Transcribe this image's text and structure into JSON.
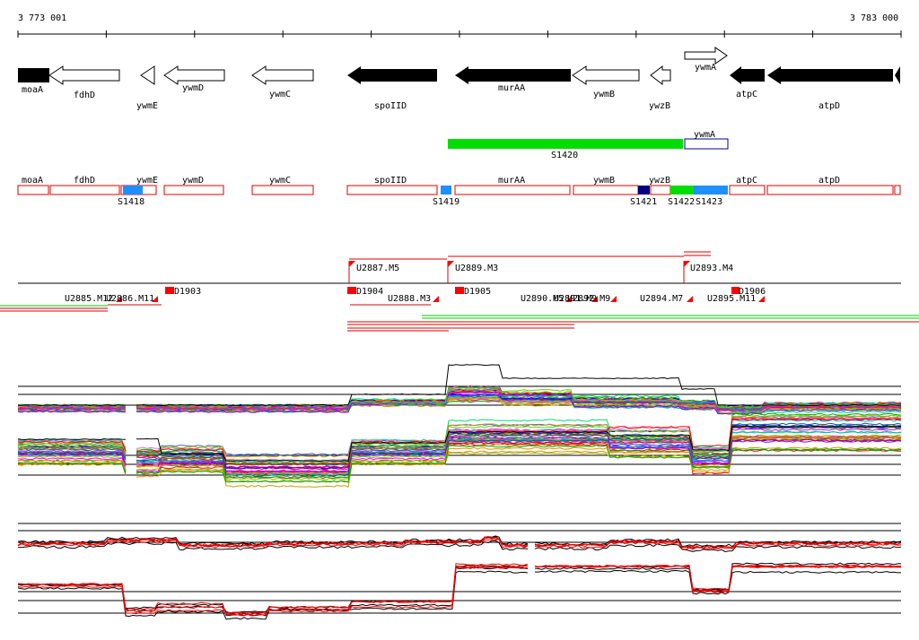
{
  "ruler": {
    "start_label": "3 773 001",
    "end_label": "3 783 000"
  },
  "colors": {
    "gene_fill_dark": "#000000",
    "gene_outline": "#000000",
    "annotation_box": "#dd0000",
    "segment_green": "#00dd00",
    "segment_light_blue": "#1e90ff",
    "segment_dark_blue": "#000080",
    "marker_red": "#ff0000"
  },
  "genes": [
    {
      "name": "moaA",
      "strand": "-",
      "filled": true
    },
    {
      "name": "fdhD",
      "strand": "-",
      "filled": false
    },
    {
      "name": "ywmE",
      "strand": "-",
      "filled": false
    },
    {
      "name": "ywmD",
      "strand": "-",
      "filled": false
    },
    {
      "name": "ywmC",
      "strand": "-",
      "filled": false
    },
    {
      "name": "spoIID",
      "strand": "-",
      "filled": true
    },
    {
      "name": "murAA",
      "strand": "-",
      "filled": true
    },
    {
      "name": "ywmB",
      "strand": "-",
      "filled": false
    },
    {
      "name": "ywzB",
      "strand": "-",
      "filled": false
    },
    {
      "name": "ywmA",
      "strand": "+",
      "filled": false
    },
    {
      "name": "atpC",
      "strand": "-",
      "filled": true
    },
    {
      "name": "atpD",
      "strand": "-",
      "filled": true
    }
  ],
  "transcripts": [
    {
      "name": "S1420",
      "color": "green"
    },
    {
      "name": "ywmA",
      "color": "outline"
    }
  ],
  "annotation_boxes": [
    {
      "name": "moaA"
    },
    {
      "name": "fdhD"
    },
    {
      "name": "ywmE"
    },
    {
      "name": "ywmD"
    },
    {
      "name": "ywmC"
    },
    {
      "name": "spoIID"
    },
    {
      "name": "murAA"
    },
    {
      "name": "ywmB"
    },
    {
      "name": "ywzB"
    },
    {
      "name": "atpC"
    },
    {
      "name": "atpD"
    }
  ],
  "segments": [
    {
      "name": "S1418"
    },
    {
      "name": "S1419"
    },
    {
      "name": "S1421"
    },
    {
      "name": "S1422"
    },
    {
      "name": "S1423"
    }
  ],
  "marker_labels": [
    "U2887.M5",
    "U2889.M3",
    "U2893.M4",
    "U2885.M12",
    "U2886.M11",
    "D1903",
    "D1904",
    "U2888.M3",
    "D1905",
    "U2890.M5",
    "U2891.M9",
    "U2892.M9",
    "U2894.M7",
    "U2895.M11",
    "D1906"
  ]
}
